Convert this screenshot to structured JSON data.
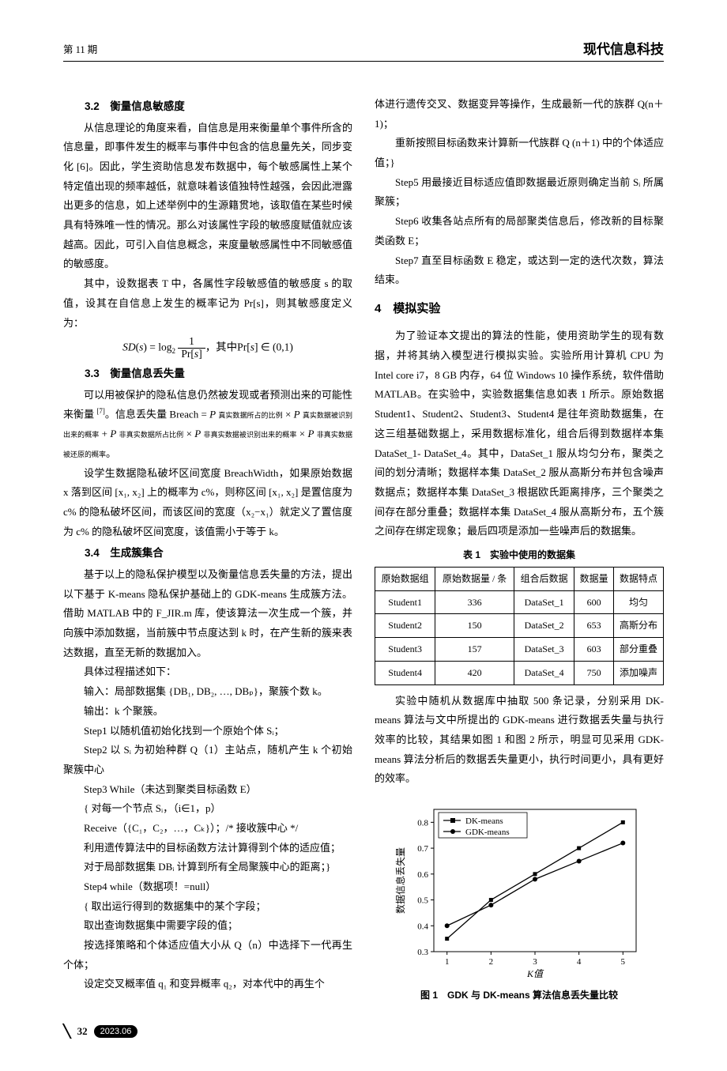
{
  "header": {
    "left": "第 11 期",
    "right": "现代信息科技"
  },
  "left_col": {
    "s32_title": "3.2　衡量信息敏感度",
    "s32_p1": "从信息理论的角度来看，自信息是用来衡量单个事件所含的信息量，即事件发生的概率与事件中包含的信息量先关，同步变化 [6]。因此，学生资助信息发布数据中，每个敏感属性上某个特定值出现的频率越低，就意味着该值独特性越强，会因此泄露出更多的信息，如上述举例中的生源籍贯地，该取值在某些时候具有特殊唯一性的情况。那么对该属性字段的敏感度赋值就应该越高。因此，可引入自信息概念，来度量敏感属性中不同敏感值的敏感度。",
    "s32_p2": "其中，设数据表 T 中，各属性字段敏感值的敏感度 s 的取值，设其在自信息上发生的概率记为 Pr[s]，则其敏感度定义为：",
    "s32_formula": "SD(s) = log₂ (1 / Pr[s])，其中 Pr[s] ∈ (0,1)",
    "s33_title": "3.3　衡量信息丢失量",
    "s33_p1": "可以用被保护的隐私信息仍然被发现或者预测出来的可能性来衡量 [7]。信息丢失量 Breach = P 真实数据所占的比例 × P 真实数据被识别出来的概率 + P 非真实数据所占的比例 × P 非真实数据被识别出来的概率 × P 非真实数据被还原的概率。",
    "s33_p2": "设学生数据隐私破坏区间宽度 BreachWidth，如果原始数据 x 落到区间 [x₁, x₂] 上的概率为 c%，则称区间 [x₁, x₂] 是置信度为 c% 的隐私破坏区间，而该区间的宽度（x₂−x₁）就定义了置信度为 c% 的隐私破坏区间宽度，该值需小于等于 k。",
    "s34_title": "3.4　生成簇集合",
    "s34_p1": "基于以上的隐私保护模型以及衡量信息丢失量的方法，提出以下基于 K-means 隐私保护基础上的 GDK-means 生成簇方法。借助 MATLAB 中的 F_JIR.m 库，使该算法一次生成一个簇，并向簇中添加数据，当前簇中节点度达到 k 时，在产生新的簇来表达数据，直至无新的数据加入。",
    "s34_p2": "具体过程描述如下：",
    "s34_p3": "输入：局部数据集 {DB₁, DB₂, …, DBₚ}，聚簇个数 k。",
    "s34_p4": "输出：k 个聚簇。",
    "s34_p5": "Step1 以随机值初始化找到一个原始个体 Sᵢ；",
    "s34_p6": "Step2 以 Sᵢ 为初始种群 Q（1）主站点，随机产生 k 个初始聚簇中心",
    "s34_p7": "Step3 While（未达到聚类目标函数 E）",
    "s34_p8": "{ 对每一个节点 Sᵢ，（i∈1，p）",
    "s34_p9": "Receive（{C₁，C₂，…，Cₖ}）；/* 接收簇中心 */",
    "s34_p10": "利用遗传算法中的目标函数方法计算得到个体的适应值；",
    "s34_p11": "对于局部数据集 DBᵢ 计算到所有全局聚簇中心的距离；}",
    "s34_p12": "Step4 while（数据项！=null）",
    "s34_p13": "{ 取出运行得到的数据集中的某个字段；",
    "s34_p14": "取出查询数据集中需要字段的值；",
    "s34_p15": "按选择策略和个体适应值大小从 Q（n）中选择下一代再生个体；",
    "s34_p16": "设定交叉概率值 q₁ 和变异概率 q₂，对本代中的再生个"
  },
  "right_col": {
    "p1": "体进行遗传交叉、数据变异等操作，生成最新一代的族群 Q(n＋1)；",
    "p2": "重新按照目标函数来计算新一代族群 Q (n＋1) 中的个体适应值；}",
    "p3": "Step5 用最接近目标适应值即数据最近原则确定当前 Sᵢ 所属聚簇；",
    "p4": "Step6 收集各站点所有的局部聚类信息后，修改新的目标聚类函数 E；",
    "p5": "Step7 直至目标函数 E 稳定，或达到一定的迭代次数，算法结束。",
    "sec4_title": "4　模拟实验",
    "sec4_p1": "为了验证本文提出的算法的性能，使用资助学生的现有数据，并将其纳入模型进行模拟实验。实验所用计算机 CPU 为 Intel core i7，8 GB 内存，64 位 Windows 10 操作系统，软件借助 MATLAB。在实验中，实验数据集信息如表 1 所示。原始数据 Student1、Student2、Student3、Student4 是往年资助数据集，在这三组基础数据上，采用数据标准化，组合后得到数据样本集 DataSet_1- DataSet_4。其中，DataSet_1 服从均匀分布，聚类之间的划分清晰；数据样本集 DataSet_2 服从高斯分布并包含噪声数据点；数据样本集 DataSet_3 根据欧氏距离排序，三个聚类之间存在部分重叠；数据样本集 DataSet_4 服从高斯分布，五个簇之间存在绑定现象；最后四项是添加一些噪声后的数据集。",
    "table1_caption": "表 1　实验中使用的数据集",
    "table1": {
      "columns": [
        "原始数据组",
        "原始数据量 / 条",
        "组合后数据",
        "数据量",
        "数据特点"
      ],
      "rows": [
        [
          "Student1",
          "336",
          "DataSet_1",
          "600",
          "均匀"
        ],
        [
          "Student2",
          "150",
          "DataSet_2",
          "653",
          "高斯分布"
        ],
        [
          "Student3",
          "157",
          "DataSet_3",
          "603",
          "部分重叠"
        ],
        [
          "Student4",
          "420",
          "DataSet_4",
          "750",
          "添加噪声"
        ]
      ]
    },
    "sec4_p2": "实验中随机从数据库中抽取 500 条记录，分别采用 DK-means 算法与文中所提出的 GDK-means 进行数据丢失量与执行效率的比较，其结果如图 1 和图 2 所示，明显可见采用 GDK-means 算法分析后的数据丢失量更小，执行时间更小，具有更好的效率。",
    "chart1": {
      "type": "line",
      "x_label": "K值",
      "y_label": "数据信息丢失量",
      "x_ticks": [
        1,
        2,
        3,
        4,
        5
      ],
      "y_ticks": [
        0.3,
        0.4,
        0.5,
        0.6,
        0.7,
        0.8
      ],
      "ylim": [
        0.3,
        0.85
      ],
      "xlim": [
        0.7,
        5.3
      ],
      "series": [
        {
          "name": "DK-means",
          "marker": "square",
          "color": "#000000",
          "x": [
            1,
            2,
            3,
            4,
            5
          ],
          "y": [
            0.35,
            0.5,
            0.6,
            0.7,
            0.8
          ]
        },
        {
          "name": "GDK-means",
          "marker": "circle",
          "color": "#000000",
          "x": [
            1,
            2,
            3,
            4,
            5
          ],
          "y": [
            0.4,
            0.48,
            0.58,
            0.65,
            0.72
          ]
        }
      ],
      "legend_pos": "top-left",
      "background": "#ffffff",
      "axis_color": "#000000",
      "line_width": 1.3,
      "marker_size": 5
    },
    "fig1_caption": "图 1　GDK 与 DK-means 算法信息丢失量比较"
  },
  "footer": {
    "page": "32",
    "date": "2023.06"
  }
}
